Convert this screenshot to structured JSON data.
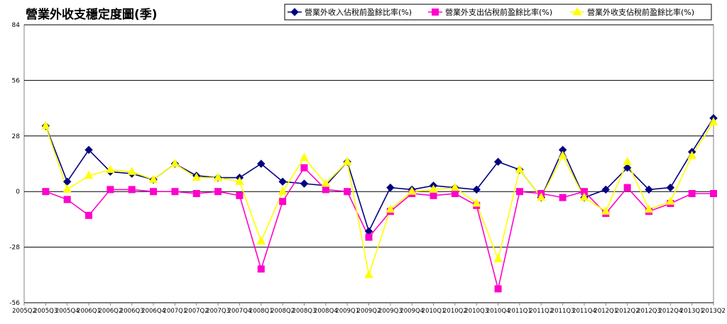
{
  "chart_data": {
    "type": "line",
    "title": "營業外收支穩定度圖(季)",
    "xlabel": "",
    "ylabel": "",
    "ylim": [
      -56,
      84
    ],
    "yticks": [
      84,
      56,
      28,
      0,
      -28,
      -56
    ],
    "grid": "horizontal",
    "legend_position": "top-right",
    "categories": [
      "2005Q2",
      "2005Q3",
      "2005Q4",
      "2006Q1",
      "2006Q2",
      "2006Q3",
      "2006Q4",
      "2007Q1",
      "2007Q2",
      "2007Q3",
      "2007Q4",
      "2008Q1",
      "2008Q2",
      "2008Q3",
      "2008Q4",
      "2009Q1",
      "2009Q2",
      "2009Q3",
      "2009Q4",
      "2010Q1",
      "2010Q2",
      "2010Q3",
      "2010Q4",
      "2011Q1",
      "2011Q2",
      "2011Q3",
      "2011Q4",
      "2012Q1",
      "2012Q2",
      "2012Q3",
      "2012Q4",
      "2013Q1",
      "2013Q2"
    ],
    "series": [
      {
        "name": "營業外收入佔稅前盈餘比率(%)",
        "color": "#000080",
        "marker": "diamond",
        "values": [
          null,
          33,
          5,
          21,
          10,
          9,
          6,
          14,
          8,
          7,
          7,
          14,
          5,
          4,
          3,
          15,
          -20,
          2,
          1,
          3,
          2,
          1,
          15,
          11,
          -3,
          21,
          -3,
          1,
          12,
          1,
          2,
          20,
          37
        ]
      },
      {
        "name": "營業外支出佔稅前盈餘比率(%)",
        "color": "#ff00cc",
        "marker": "square",
        "values": [
          null,
          0,
          -4,
          -12,
          1,
          1,
          0,
          0,
          -1,
          0,
          -2,
          -39,
          -5,
          12,
          1,
          0,
          -23,
          -10,
          -1,
          -2,
          -1,
          -7,
          -49,
          0,
          -1,
          -3,
          0,
          -11,
          2,
          -10,
          -6,
          -1,
          -1
        ]
      },
      {
        "name": "營業外收支佔稅前盈餘比率(%)",
        "color": "#ffff00",
        "marker": "triangle",
        "values": [
          null,
          33,
          1,
          8,
          11,
          10,
          6,
          14,
          7,
          7,
          5,
          -25,
          0,
          17,
          4,
          15,
          -42,
          -9,
          0,
          1,
          2,
          -6,
          -34,
          11,
          -3,
          18,
          -3,
          -10,
          15,
          -9,
          -5,
          18,
          35
        ]
      }
    ]
  }
}
